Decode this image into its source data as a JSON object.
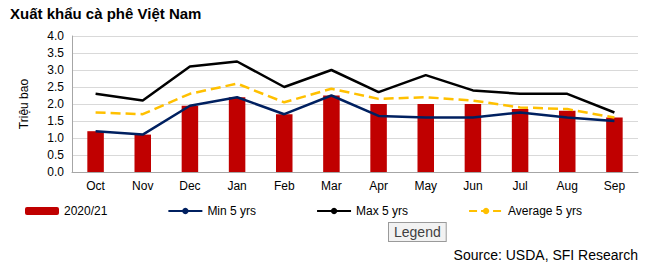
{
  "chart_data": {
    "type": "bar",
    "title": "Xuất khẩu cà phê Việt Nam",
    "y_label": "Triệu bao",
    "source": "Source: USDA, SFI Research",
    "annotations": [
      "Legend"
    ],
    "categories": [
      "Oct",
      "Nov",
      "Dec",
      "Jan",
      "Feb",
      "Mar",
      "Apr",
      "May",
      "Jun",
      "Jul",
      "Aug",
      "Sep"
    ],
    "series": [
      {
        "name": "2020/21",
        "type": "bar",
        "color": "#c00000",
        "values": [
          1.2,
          1.1,
          1.95,
          2.2,
          1.7,
          2.25,
          2.0,
          2.0,
          2.0,
          1.85,
          1.8,
          1.6
        ]
      },
      {
        "name": "Min 5 yrs",
        "type": "line",
        "color": "#002060",
        "line_style": "solid",
        "values": [
          1.2,
          1.1,
          1.95,
          2.2,
          1.7,
          2.25,
          1.65,
          1.6,
          1.6,
          1.75,
          1.6,
          1.5
        ]
      },
      {
        "name": "Max 5 yrs",
        "type": "line",
        "color": "#000000",
        "line_style": "solid",
        "values": [
          2.3,
          2.1,
          3.1,
          3.25,
          2.5,
          3.0,
          2.35,
          2.85,
          2.4,
          2.3,
          2.3,
          1.75
        ]
      },
      {
        "name": "Average 5 yrs",
        "type": "line",
        "color": "#ffc000",
        "line_style": "dashed",
        "values": [
          1.75,
          1.7,
          2.3,
          2.6,
          2.05,
          2.45,
          2.15,
          2.2,
          2.1,
          1.9,
          1.85,
          1.6
        ]
      }
    ],
    "ylim": [
      0,
      4
    ],
    "yticks": [
      {
        "value": 0,
        "label": "0.0"
      },
      0.5,
      {
        "value": 1,
        "label": "1.0"
      },
      1.5,
      {
        "value": 2,
        "label": "2.0"
      },
      2.5,
      {
        "value": 3,
        "label": "3.0"
      },
      3.5,
      {
        "value": 4,
        "label": "4.0"
      }
    ],
    "grid": true,
    "legend": "bottom"
  }
}
